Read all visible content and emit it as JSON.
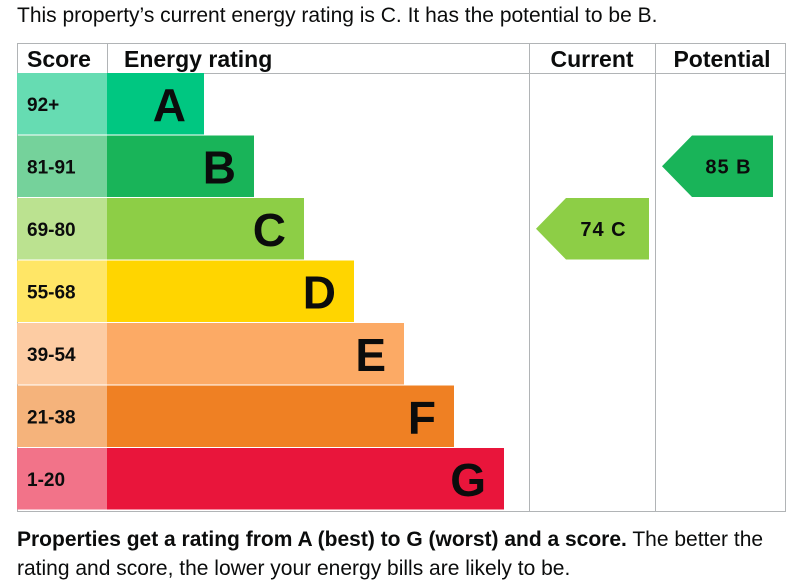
{
  "summary": "This property’s current energy rating is C. It has the potential to be B.",
  "footer": {
    "strong": "Properties get a rating from A (best) to G (worst) and a score.",
    "rest": " The better the rating and score, the lower your energy bills are likely to be."
  },
  "chart_data": {
    "type": "table",
    "headers": {
      "score": "Score",
      "rating": "Energy rating",
      "current": "Current",
      "potential": "Potential"
    },
    "bands": [
      {
        "letter": "A",
        "range": "92+",
        "color": "#00c781",
        "score_color": "#66dcb2"
      },
      {
        "letter": "B",
        "range": "81-91",
        "color": "#19b459",
        "score_color": "#75d29b"
      },
      {
        "letter": "C",
        "range": "69-80",
        "color": "#8dce46",
        "score_color": "#bbe290"
      },
      {
        "letter": "D",
        "range": "55-68",
        "color": "#ffd500",
        "score_color": "#ffe666"
      },
      {
        "letter": "E",
        "range": "39-54",
        "color": "#fcaa65",
        "score_color": "#fdcca3"
      },
      {
        "letter": "F",
        "range": "21-38",
        "color": "#ef8023",
        "score_color": "#f5b37b"
      },
      {
        "letter": "G",
        "range": "1-20",
        "color": "#e9153b",
        "score_color": "#f27389"
      }
    ],
    "current": {
      "score": 74,
      "letter": "C",
      "label": "74 C"
    },
    "potential": {
      "score": 85,
      "letter": "B",
      "label": "85 B"
    }
  }
}
